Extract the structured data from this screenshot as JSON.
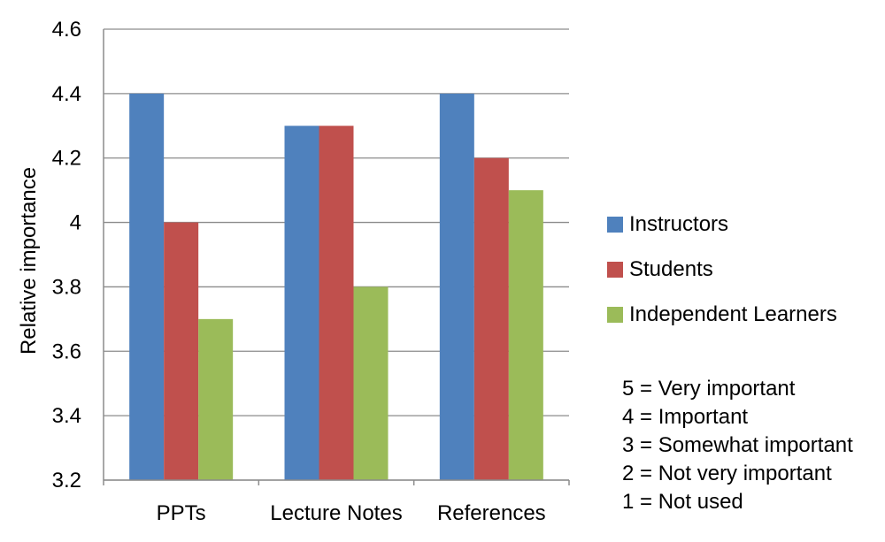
{
  "chart_data": {
    "type": "bar",
    "categories": [
      "PPTs",
      "Lecture Notes",
      "References"
    ],
    "series": [
      {
        "name": "Instructors",
        "values": [
          4.4,
          4.3,
          4.4
        ],
        "color": "#4F81BD"
      },
      {
        "name": "Students",
        "values": [
          4.0,
          4.3,
          4.2
        ],
        "color": "#C0504D"
      },
      {
        "name": "Independent Learners",
        "values": [
          3.7,
          3.8,
          4.1
        ],
        "color": "#9BBB59"
      }
    ],
    "ylabel": "Relative importance",
    "ylim": [
      3.2,
      4.6
    ],
    "yticks": [
      "3.2",
      "3.4",
      "3.6",
      "3.8",
      "4",
      "4.2",
      "4.4",
      "4.6"
    ],
    "grid": true,
    "legend_position": "right",
    "scale_notes": [
      "5 = Very important",
      "4 = Important",
      "3 = Somewhat important",
      "2 = Not very important",
      "1 = Not used"
    ]
  }
}
